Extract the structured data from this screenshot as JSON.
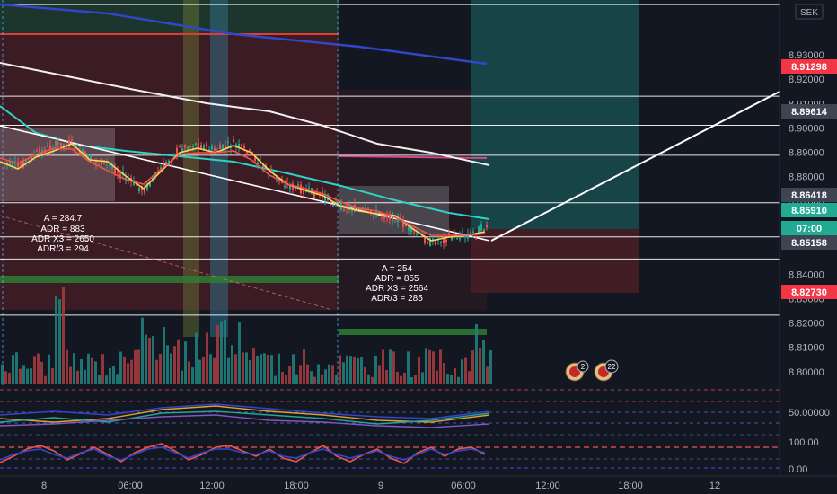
{
  "currency": "SEK",
  "colors": {
    "bg": "#131722",
    "up": "#26a69a",
    "down": "#ef5350",
    "price_axis_text": "#b2b5be",
    "red_tag": "#f23645",
    "gray_tag": "#3f4453",
    "teal_tag": "#22ab94",
    "white_line": "#ffffff",
    "blue_ma": "#3246c8",
    "teal_ma": "#2fd3c6"
  },
  "chart_data": {
    "type": "candlestick",
    "symbol_currency": "SEK",
    "price_ticks": [
      "8.93000",
      "8.92000",
      "8.91000",
      "8.90000",
      "8.89000",
      "8.88000",
      "8.87000",
      "8.86000",
      "8.84000",
      "8.83000",
      "8.82000",
      "8.81000",
      "8.80000"
    ],
    "price_range": [
      8.7955,
      8.9525
    ],
    "price_tags": [
      {
        "value": "8.91298",
        "style": "red"
      },
      {
        "value": "8.89614",
        "style": "gray"
      },
      {
        "value": "8.86418",
        "style": "gray"
      },
      {
        "value": "8.85910",
        "style": "teal"
      },
      {
        "value": "07:00",
        "style": "teal"
      },
      {
        "value": "8.85158",
        "style": "gray"
      },
      {
        "value": "8.82730",
        "style": "red"
      }
    ],
    "indicator_ticks": [
      "50.00000",
      "100.00",
      "0.00"
    ],
    "time_ticks": [
      "8",
      "06:00",
      "12:00",
      "18:00",
      "9",
      "06:00",
      "12:00",
      "18:00",
      "12"
    ],
    "horizontal_levels": [
      8.9506,
      8.913,
      8.9011,
      8.8888,
      8.8693,
      8.8553,
      8.8462,
      8.8232
    ],
    "adr_boxes": [
      {
        "a": "A = 284.7",
        "adr": "ADR = 883",
        "x3": "ADR X3 = 2650",
        "d3": "ADR/3 = 294"
      },
      {
        "a": "A = 254",
        "adr": "ADR = 855",
        "x3": "ADR X3 = 2564",
        "d3": "ADR/3 = 285"
      }
    ],
    "event_badges": [
      "2",
      "22"
    ]
  }
}
